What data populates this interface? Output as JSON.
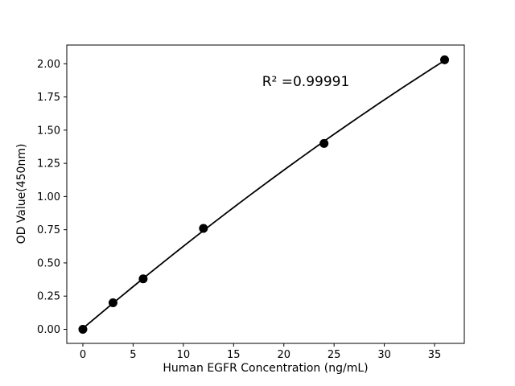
{
  "chart_data": {
    "type": "scatter",
    "title": "",
    "xlabel": "Human EGFR Concentration (ng/mL)",
    "ylabel": "OD Value(450nm)",
    "x": [
      0,
      3,
      6,
      12,
      24,
      36
    ],
    "y": [
      0.0,
      0.2,
      0.38,
      0.76,
      1.4,
      2.03
    ],
    "annotation": "R² =0.99991",
    "xticks": [
      0,
      5,
      10,
      15,
      20,
      25,
      30,
      35
    ],
    "yticks": [
      0.0,
      0.25,
      0.5,
      0.75,
      1.0,
      1.25,
      1.5,
      1.75,
      2.0
    ],
    "xlim": [
      -1.6,
      37.96
    ],
    "ylim": [
      -0.106,
      2.141
    ],
    "grid": false,
    "legend_position": "none",
    "fit": "quadratic",
    "marker_color": "#000000",
    "line_color": "#000000",
    "axis_color": "#000000",
    "background_color": "#ffffff"
  }
}
